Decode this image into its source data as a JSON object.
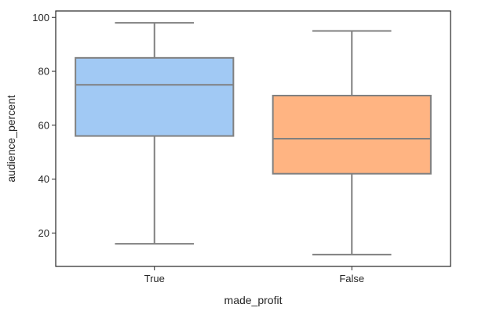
{
  "chart_data": {
    "type": "boxplot",
    "xlabel": "made_profit",
    "ylabel": "audience_percent",
    "ylim": [
      7.6,
      102.4
    ],
    "yticks": [
      20,
      40,
      60,
      80,
      100
    ],
    "grid": false,
    "legend": "none",
    "boxes": [
      {
        "category": "True",
        "whisker_low": 16,
        "q1": 56,
        "median": 75,
        "q3": 85,
        "whisker_high": 98,
        "color": "#a1c9f4"
      },
      {
        "category": "False",
        "whisker_low": 12,
        "q1": 42,
        "median": 55,
        "q3": 71,
        "whisker_high": 95,
        "color": "#ffb482"
      }
    ],
    "line_color": "#808080",
    "frame_color": "#262626"
  }
}
